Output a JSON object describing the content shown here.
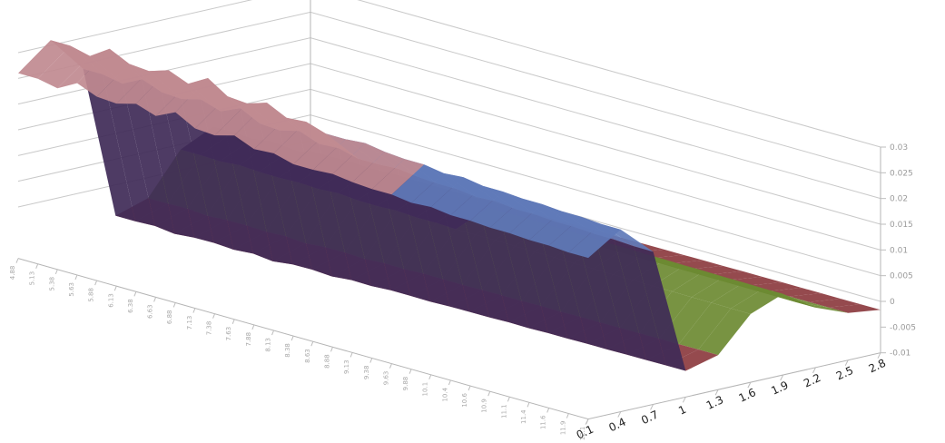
{
  "chart_data": {
    "type": "surface",
    "title": "",
    "xlabel": "",
    "ylabel": "",
    "zlabel": "",
    "depth_categories": [
      "0.1",
      "0.4",
      "0.7",
      "1",
      "1.3",
      "1.6",
      "1.9",
      "2.2",
      "2.5",
      "2.8"
    ],
    "z_ticks": [
      -0.01,
      -0.005,
      0,
      0.005,
      0.01,
      0.015,
      0.02,
      0.025,
      0.03
    ],
    "z_tick_labels": [
      "-0.01",
      "-0.005",
      "0",
      "0.005",
      "0.01",
      "0.015",
      "0.02",
      "0.025",
      "0.03"
    ],
    "zlim": [
      -0.01,
      0.03
    ],
    "band_colors": [
      "#8c3b3f",
      "#6d8a32",
      "#3f2a57",
      "#2a8ca0",
      "#b8651f",
      "#5f7ab8",
      "#c08a90"
    ],
    "grid": true,
    "legend": "none",
    "x_categories": [
      "4.88",
      "5.13",
      "5.38",
      "5.63",
      "5.88",
      "6.13",
      "6.38",
      "6.63",
      "6.88",
      "7.13",
      "7.38",
      "7.63",
      "7.88",
      "8.13",
      "8.38",
      "8.63",
      "8.88",
      "9.13",
      "9.38",
      "9.63",
      "9.88",
      "10.1",
      "10.4",
      "10.6",
      "10.9",
      "11.1",
      "11.4",
      "11.6",
      "11.9",
      "12.1"
    ],
    "depth_profile": [
      0.026,
      0.031,
      0.024,
      -0.006,
      -0.004,
      0.004,
      0.007,
      0.002,
      -0.001,
      -0.002
    ],
    "x_modulation": [
      1.0,
      1.0,
      0.97,
      1.05,
      0.99,
      0.98,
      1.02,
      0.97,
      1.04,
      0.96,
      0.95,
      0.99,
      0.93,
      0.94,
      0.9,
      0.9,
      0.91,
      0.89,
      0.88,
      0.88,
      0.86,
      0.87,
      0.85,
      0.85,
      0.84,
      0.84,
      0.83,
      0.83,
      0.82,
      0.82
    ]
  }
}
